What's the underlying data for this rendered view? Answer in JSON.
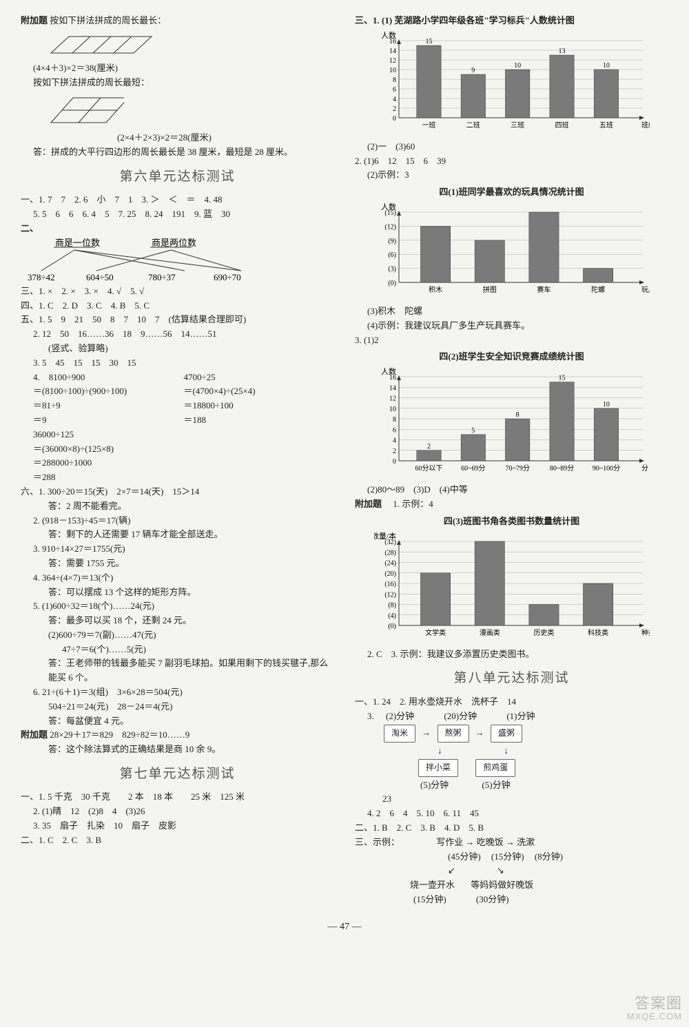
{
  "left": {
    "fujia_label": "附加题",
    "fujia_text1": "按如下拼法拼成的周长最长：",
    "fujia_calc1": "(4×4＋3)×2＝38(厘米)",
    "fujia_text2": "按如下拼法拼成的周长最短：",
    "fujia_calc2": "(2×4＋2×3)×2＝28(厘米)",
    "fujia_ans": "答：拼成的大平行四边形的周长最长是 38 厘米，最短是 28 厘米。",
    "unit6_title": "第六单元达标测试",
    "u6_1": "一、1. 7　7　2. 6　小　7　1　3. ＞　＜　＝　4. 48",
    "u6_1b": "5. 5　6　6　6. 4　5　7. 25　8. 24　191　9. 蓝　30",
    "u6_2_label": "二、",
    "u6_2_a": "商是一位数",
    "u6_2_b": "商是两位数",
    "u6_2_nums": [
      "378÷42",
      "604÷50",
      "780÷37",
      "690÷70"
    ],
    "u6_3": "三、1. ×　2. ×　3. ×　4. √　5. √",
    "u6_4": "四、1. C　2. D　3. C　4. B　5. C",
    "u6_5_1": "五、1. 5　9　21　50　8　7　10　7　(估算结果合理即可)",
    "u6_5_2": "2. 12　50　16……36　18　9……56　14……51",
    "u6_5_2b": "(竖式、验算略)",
    "u6_5_3": "3. 5　45　15　15　30　15",
    "u6_5_4a": "4.　8100÷900",
    "u6_5_4b": "4700÷25",
    "u6_5_4_l1": "＝(8100÷100)÷(900÷100)",
    "u6_5_4_r1": "＝(4700×4)÷(25×4)",
    "u6_5_4_l2": "＝81÷9",
    "u6_5_4_r2": "＝18800÷100",
    "u6_5_4_l3": "＝9",
    "u6_5_4_r3": "＝188",
    "u6_5_4c": "36000÷125",
    "u6_5_4c1": "＝(36000×8)÷(125×8)",
    "u6_5_4c2": "＝288000÷1000",
    "u6_5_4c3": "＝288",
    "u6_6_1a": "六、1. 300÷20＝15(天)　2×7＝14(天)　15＞14",
    "u6_6_1b": "答：2 周不能看完。",
    "u6_6_2a": "2. (918－153)÷45＝17(辆)",
    "u6_6_2b": "答：剩下的人还需要 17 辆车才能全部送走。",
    "u6_6_3a": "3. 910÷14×27＝1755(元)",
    "u6_6_3b": "答：需要 1755 元。",
    "u6_6_4a": "4. 364÷(4×7)＝13(个)",
    "u6_6_4b": "答：可以摆成 13 个这样的矩形方阵。",
    "u6_6_5a": "5. (1)600÷32＝18(个)……24(元)",
    "u6_6_5b": "答：最多可以买 18 个，还剩 24 元。",
    "u6_6_5c": "(2)600÷79＝7(副)……47(元)",
    "u6_6_5d": "47÷7＝6(个)……5(元)",
    "u6_6_5e": "答：王老师带的钱最多能买 7 副羽毛球拍。如果用剩下的钱买毽子,那么能买 6 个。",
    "u6_6_6a": "6. 21÷(6＋1)＝3(组)　3×6×28＝504(元)",
    "u6_6_6b": "504÷21＝24(元)　28－24＝4(元)",
    "u6_6_6c": "答：每盆便宜 4 元。",
    "u6_fj_label": "附加题",
    "u6_fj_a": "28×29＋17＝829　829÷82＝10……9",
    "u6_fj_b": "答：这个除法算式的正确结果是商 10 余 9。",
    "unit7_title": "第七单元达标测试",
    "u7_1": "一、1. 5 千克　30 千克　　2 本　18 本　　25 米　125 米",
    "u7_1b": "2. (1)晴　12　(2)8　4　(3)26",
    "u7_1c": "3. 35　扇子　扎染　10　扇子　皮影",
    "u7_2": "二、1. C　2. C　3. B"
  },
  "right": {
    "u7_3_label": "三、1. (1)",
    "chart1": {
      "title": "芜湖路小学四年级各班\"学习标兵\"人数统计图",
      "ylabel": "人数",
      "xlabel": "班级",
      "ymax": 16,
      "ytick_step": 2,
      "categories": [
        "一班",
        "二班",
        "三班",
        "四班",
        "五班"
      ],
      "values": [
        15,
        9,
        10,
        13,
        10
      ],
      "bar_color": "#7a7a7a",
      "grid_color": "#aaaaaa",
      "bg_color": "#ffffff"
    },
    "u7_3_2": "(2)一　(3)60",
    "u7_3_q2": "2. (1)6　12　15　6　39",
    "u7_3_q2b": "(2)示例：3",
    "chart2": {
      "title": "四(1)班同学最喜欢的玩具情况统计图",
      "ylabel": "人数",
      "xlabel": "玩具",
      "ymax": 15,
      "yticks": [
        0,
        3,
        6,
        9,
        12,
        15
      ],
      "categories": [
        "积木",
        "拼图",
        "赛车",
        "陀螺"
      ],
      "values": [
        12,
        9,
        15,
        3
      ],
      "bar_color": "#7a7a7a",
      "grid_color": "#aaaaaa"
    },
    "u7_3_q2c": "(3)积木　陀螺",
    "u7_3_q2d": "(4)示例：我建议玩具厂多生产玩具赛车。",
    "u7_3_q3": "3. (1)2",
    "chart3": {
      "title": "四(2)班学生安全知识竞赛成绩统计图",
      "ylabel": "人数",
      "xlabel": "分 成绩",
      "ymax": 16,
      "ytick_step": 2,
      "categories": [
        "60分以下",
        "60~69分",
        "70~79分",
        "80~89分",
        "90~100分"
      ],
      "values": [
        2,
        5,
        8,
        15,
        10
      ],
      "bar_color": "#7a7a7a",
      "grid_color": "#aaaaaa"
    },
    "u7_3_q3b": "(2)80～89　(3)D　(4)中等",
    "u7_fj_label": "附加题",
    "u7_fj_1": "1. 示例：4",
    "chart4": {
      "title": "四(3)班图书角各类图书数量统计图",
      "ylabel": "数量/本",
      "xlabel": "种类",
      "ymax": 32,
      "yticks": [
        0,
        4,
        8,
        12,
        16,
        20,
        24,
        28,
        32
      ],
      "categories": [
        "文学类",
        "漫画类",
        "历史类",
        "科技类"
      ],
      "values": [
        20,
        32,
        8,
        16
      ],
      "bar_color": "#7a7a7a",
      "grid_color": "#aaaaaa"
    },
    "u7_fj_2": "2. C　3. 示例：我建议多添置历史类图书。",
    "unit8_title": "第八单元达标测试",
    "u8_1": "一、1. 24　2. 用水壶烧开水　洗杯子　14",
    "u8_3_label": "3.",
    "flow": {
      "top_labels": [
        "(2)分钟",
        "(20)分钟",
        "(1)分钟"
      ],
      "top_boxes": [
        "淘米",
        "熬粥",
        "盛粥"
      ],
      "bot_boxes": [
        "拌小菜",
        "煎鸡蛋"
      ],
      "bot_labels": [
        "(5)分钟",
        "(5)分钟"
      ]
    },
    "u8_3_ans": "23",
    "u8_4": "4. 2　6　4　5. 10　6. 11　45",
    "u8_2": "二、1. B　2. C　3. B　4. D　5. B",
    "u8_3": "三、示例：",
    "flow2": {
      "top": [
        "写作业",
        "吃晚饭",
        "洗漱"
      ],
      "top_labels": [
        "(45分钟)",
        "(15分钟)",
        "(8分钟)"
      ],
      "bot": [
        "烧一壶开水",
        "等妈妈做好晚饭"
      ],
      "bot_labels": [
        "(15分钟)",
        "(30分钟)"
      ]
    }
  },
  "page_num": "— 47 —",
  "watermark1": "答案圈",
  "watermark2": "MXQE.COM"
}
